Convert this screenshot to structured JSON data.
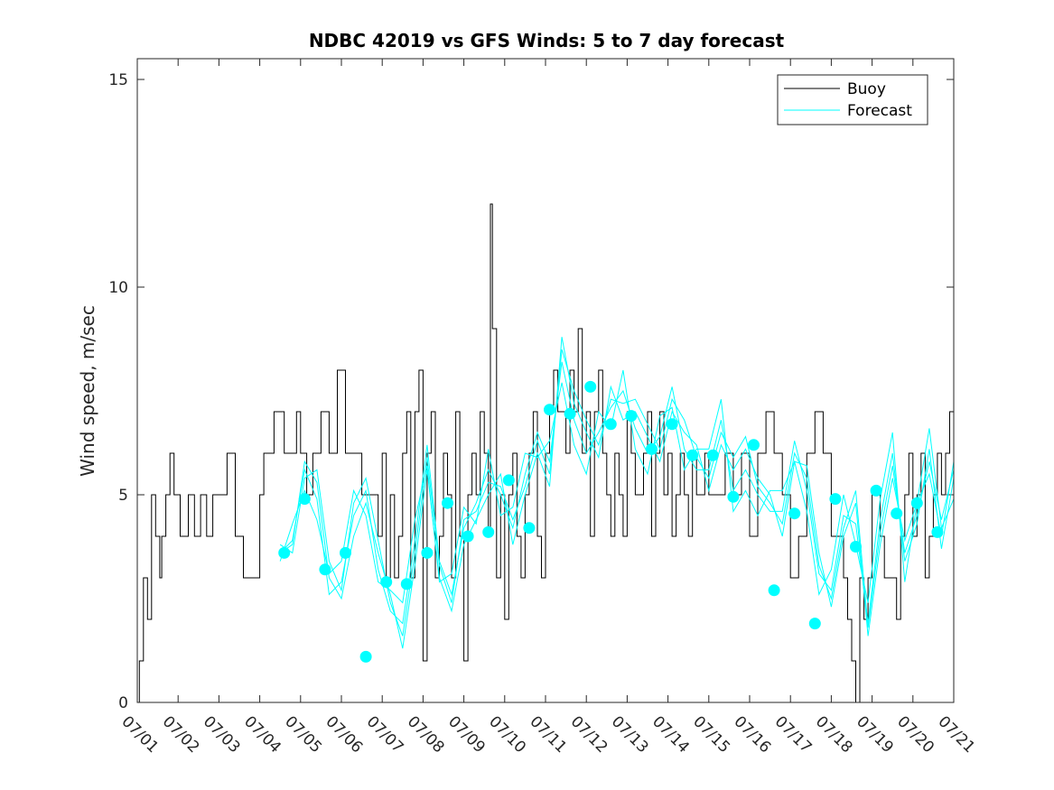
{
  "chart_data": {
    "type": "line",
    "title": "NDBC 42019 vs GFS Winds: 5 to 7 day forecast",
    "xlabel": "",
    "ylabel": "Wind speed, m/sec",
    "x_tick_labels": [
      "07/01",
      "07/02",
      "07/03",
      "07/04",
      "07/05",
      "07/06",
      "07/07",
      "07/08",
      "07/09",
      "07/10",
      "07/11",
      "07/12",
      "07/13",
      "07/14",
      "07/15",
      "07/16",
      "07/17",
      "07/18",
      "07/19",
      "07/20",
      "07/21"
    ],
    "xlim": [
      0,
      20
    ],
    "ylim": [
      0,
      15.5
    ],
    "y_ticks": [
      0,
      5,
      10,
      15
    ],
    "grid": false,
    "legend_position": "top-right",
    "colors": {
      "buoy": "#000000",
      "forecast": "#00ffff"
    },
    "series": [
      {
        "name": "Buoy",
        "style": "step-line",
        "x": [
          0.0,
          0.05,
          0.15,
          0.25,
          0.35,
          0.45,
          0.55,
          0.6,
          0.7,
          0.8,
          0.9,
          1.0,
          1.05,
          1.15,
          1.25,
          1.4,
          1.55,
          1.7,
          1.85,
          2.0,
          2.2,
          2.4,
          2.6,
          2.8,
          3.0,
          3.1,
          3.2,
          3.35,
          3.5,
          3.6,
          3.7,
          3.8,
          3.9,
          4.0,
          4.15,
          4.3,
          4.5,
          4.7,
          4.9,
          5.1,
          5.3,
          5.5,
          5.7,
          5.9,
          6.0,
          6.1,
          6.2,
          6.3,
          6.4,
          6.5,
          6.6,
          6.7,
          6.8,
          6.9,
          7.0,
          7.1,
          7.2,
          7.3,
          7.4,
          7.5,
          7.6,
          7.7,
          7.8,
          7.9,
          8.0,
          8.1,
          8.2,
          8.3,
          8.4,
          8.5,
          8.6,
          8.65,
          8.7,
          8.8,
          8.9,
          9.0,
          9.1,
          9.2,
          9.3,
          9.4,
          9.5,
          9.6,
          9.7,
          9.8,
          9.9,
          10.0,
          10.1,
          10.2,
          10.3,
          10.4,
          10.5,
          10.6,
          10.7,
          10.8,
          10.9,
          11.0,
          11.1,
          11.2,
          11.3,
          11.4,
          11.5,
          11.6,
          11.7,
          11.8,
          11.9,
          12.0,
          12.1,
          12.2,
          12.3,
          12.4,
          12.5,
          12.6,
          12.7,
          12.8,
          12.9,
          13.0,
          13.1,
          13.2,
          13.3,
          13.4,
          13.5,
          13.6,
          13.7,
          13.8,
          13.9,
          14.0,
          14.2,
          14.4,
          14.6,
          14.8,
          15.0,
          15.2,
          15.4,
          15.6,
          15.8,
          16.0,
          16.2,
          16.4,
          16.6,
          16.8,
          17.0,
          17.1,
          17.2,
          17.3,
          17.4,
          17.5,
          17.6,
          17.7,
          17.8,
          17.9,
          18.0,
          18.1,
          18.2,
          18.3,
          18.4,
          18.5,
          18.6,
          18.7,
          18.8,
          18.9,
          19.0,
          19.1,
          19.2,
          19.3,
          19.4,
          19.5,
          19.6,
          19.7,
          19.8,
          19.9,
          20.0
        ],
        "y": [
          0,
          1,
          3,
          2,
          5,
          4,
          3,
          4,
          5,
          6,
          5,
          5,
          4,
          4,
          5,
          4,
          5,
          4,
          5,
          5,
          6,
          4,
          3,
          3,
          5,
          6,
          6,
          7,
          7,
          6,
          6,
          6,
          7,
          6,
          5,
          6,
          7,
          6,
          8,
          6,
          6,
          5,
          5,
          4,
          6,
          3,
          5,
          3,
          4,
          6,
          7,
          3,
          7,
          8,
          1,
          6,
          7,
          3,
          4,
          6,
          5,
          3,
          7,
          4,
          1,
          5,
          6,
          5,
          7,
          6,
          4,
          12,
          9,
          3,
          5,
          2,
          5,
          6,
          4,
          3,
          5,
          6,
          7,
          4,
          3,
          6,
          7,
          8,
          7,
          7,
          6,
          8,
          7,
          9,
          6,
          7,
          4,
          7,
          8,
          6,
          5,
          4,
          6,
          5,
          4,
          7,
          6,
          5,
          5,
          6,
          7,
          4,
          6,
          7,
          5,
          6,
          4,
          5,
          6,
          5,
          4,
          6,
          5,
          5,
          6,
          5,
          5,
          6,
          5,
          6,
          4,
          6,
          7,
          6,
          5,
          3,
          4,
          6,
          7,
          6,
          4,
          4,
          4,
          3,
          2,
          1,
          0,
          3,
          2,
          3,
          5,
          5,
          4,
          3,
          3,
          3,
          2,
          4,
          5,
          6,
          4,
          5,
          6,
          3,
          4,
          5,
          6,
          5,
          6,
          7,
          5
        ]
      },
      {
        "name": "Forecast",
        "style": "multi-line",
        "lines": [
          {
            "x": [
              3.5,
              3.8,
              4.1,
              4.4,
              4.7,
              5.0,
              5.3,
              5.6,
              5.9,
              6.2,
              6.5,
              6.8,
              7.1,
              7.4,
              7.7,
              8.0,
              8.3,
              8.6,
              8.9,
              9.2,
              9.5,
              9.8,
              10.1,
              10.4,
              10.7,
              11.0,
              11.3,
              11.6,
              11.9,
              12.2,
              12.5,
              12.8,
              13.1,
              13.4,
              13.7,
              14.0,
              14.3,
              14.6,
              14.9,
              15.2,
              15.5,
              15.8,
              16.1,
              16.4,
              16.7,
              17.0,
              17.3,
              17.6,
              17.9,
              18.2,
              18.5,
              18.8,
              19.1,
              19.4,
              19.7,
              20.0
            ],
            "y": [
              3.6,
              3.8,
              5.8,
              5.3,
              3.0,
              2.5,
              4.0,
              4.8,
              3.6,
              2.6,
              1.3,
              3.3,
              5.6,
              3.0,
              2.2,
              3.8,
              4.4,
              5.0,
              5.5,
              3.8,
              5.0,
              6.0,
              5.2,
              8.8,
              7.2,
              6.5,
              5.9,
              7.6,
              6.8,
              7.0,
              6.4,
              5.8,
              7.0,
              6.5,
              6.2,
              5.1,
              6.2,
              5.6,
              6.1,
              5.4,
              5.0,
              4.0,
              5.8,
              5.7,
              3.6,
              2.3,
              4.0,
              4.8,
              1.6,
              3.8,
              5.4,
              3.9,
              4.8,
              5.5,
              4.0,
              5.8
            ]
          },
          {
            "x": [
              3.5,
              3.8,
              4.1,
              4.4,
              4.7,
              5.0,
              5.3,
              5.6,
              5.9,
              6.2,
              6.5,
              6.8,
              7.1,
              7.4,
              7.7,
              8.0,
              8.3,
              8.6,
              8.9,
              9.2,
              9.5,
              9.8,
              10.1,
              10.4,
              10.7,
              11.0,
              11.3,
              11.6,
              11.9,
              12.2,
              12.5,
              12.8,
              13.1,
              13.4,
              13.7,
              14.0,
              14.3,
              14.6,
              14.9,
              15.2,
              15.5,
              15.8,
              16.1,
              16.4,
              16.7,
              17.0,
              17.3,
              17.6,
              17.9,
              18.2,
              18.5,
              18.8,
              19.1,
              19.4,
              19.7,
              20.0
            ],
            "y": [
              3.6,
              3.9,
              5.6,
              4.9,
              2.6,
              2.9,
              4.5,
              5.1,
              3.2,
              2.2,
              1.9,
              3.9,
              6.2,
              3.4,
              2.6,
              4.2,
              4.8,
              5.6,
              5.0,
              4.2,
              5.5,
              6.5,
              5.8,
              8.2,
              6.8,
              6.0,
              6.5,
              7.1,
              7.5,
              6.6,
              6.0,
              6.4,
              7.6,
              6.1,
              5.6,
              5.6,
              6.8,
              5.1,
              5.6,
              5.0,
              4.6,
              4.6,
              6.3,
              5.1,
              3.1,
              2.7,
              4.5,
              4.3,
              1.9,
              4.4,
              6.0,
              3.4,
              4.3,
              6.1,
              3.7,
              5.4
            ]
          },
          {
            "x": [
              3.5,
              3.8,
              4.1,
              4.4,
              4.7,
              5.0,
              5.3,
              5.6,
              5.9,
              6.2,
              6.5,
              6.8,
              7.1,
              7.4,
              7.7,
              8.0,
              8.3,
              8.6,
              8.9,
              9.2,
              9.5,
              9.8,
              10.1,
              10.4,
              10.7,
              11.0,
              11.3,
              11.6,
              11.9,
              12.2,
              12.5,
              12.8,
              13.1,
              13.4,
              13.7,
              14.0,
              14.3,
              14.6,
              14.9,
              15.2,
              15.5,
              15.8,
              16.1,
              16.4,
              16.7,
              17.0,
              17.3,
              17.6,
              17.9,
              18.2,
              18.5,
              18.8,
              19.1,
              19.4,
              19.7,
              20.0
            ],
            "y": [
              3.4,
              4.3,
              5.1,
              4.4,
              3.1,
              3.4,
              5.1,
              4.5,
              2.9,
              2.7,
              2.4,
              4.4,
              5.7,
              2.9,
              3.1,
              4.7,
              4.3,
              6.1,
              4.5,
              4.7,
              6.0,
              5.9,
              6.3,
              7.7,
              6.2,
              5.5,
              7.0,
              6.6,
              8.0,
              6.1,
              5.5,
              6.9,
              7.1,
              5.6,
              6.1,
              6.1,
              7.3,
              4.6,
              5.1,
              4.5,
              5.1,
              5.1,
              5.8,
              4.6,
              2.6,
              3.2,
              5.0,
              3.8,
              2.4,
              4.9,
              6.5,
              2.9,
              4.8,
              6.6,
              4.2,
              4.9
            ]
          },
          {
            "x": [
              3.5,
              3.8,
              4.1,
              4.4,
              4.7,
              5.0,
              5.3,
              5.6,
              5.9,
              6.2,
              6.5,
              6.8,
              7.1,
              7.4,
              7.7,
              8.0,
              8.3,
              8.6,
              8.9,
              9.2,
              9.5,
              9.8,
              10.1,
              10.4,
              10.7,
              11.0,
              11.3,
              11.6,
              11.9,
              12.2,
              12.5,
              12.8,
              13.1,
              13.4,
              13.7,
              14.0,
              14.3,
              14.6,
              14.9,
              15.2,
              15.5,
              15.8,
              16.1,
              16.4,
              16.7,
              17.0,
              17.3,
              17.6,
              17.9,
              18.2,
              18.5,
              18.8,
              19.1,
              19.4,
              19.7,
              20.0
            ],
            "y": [
              3.8,
              3.6,
              5.4,
              5.6,
              3.4,
              2.7,
              4.8,
              5.4,
              3.9,
              2.4,
              1.6,
              3.6,
              5.9,
              3.3,
              2.4,
              4.4,
              4.6,
              5.3,
              5.2,
              4.4,
              5.2,
              6.3,
              5.5,
              8.5,
              7.5,
              6.8,
              6.2,
              7.3,
              7.2,
              7.3,
              6.7,
              6.1,
              7.3,
              6.8,
              5.9,
              5.4,
              6.5,
              5.9,
              6.4,
              5.2,
              4.8,
              4.3,
              6.0,
              5.4,
              3.3,
              2.5,
              4.2,
              5.1,
              1.8,
              4.1,
              5.7,
              3.6,
              4.5,
              5.8,
              4.4,
              5.6
            ]
          }
        ],
        "markers": [
          {
            "x": 3.6,
            "y": 3.6
          },
          {
            "x": 4.1,
            "y": 4.9
          },
          {
            "x": 4.6,
            "y": 3.2
          },
          {
            "x": 5.1,
            "y": 3.6
          },
          {
            "x": 5.6,
            "y": 1.1
          },
          {
            "x": 6.1,
            "y": 2.9
          },
          {
            "x": 6.6,
            "y": 2.85
          },
          {
            "x": 7.1,
            "y": 3.6
          },
          {
            "x": 7.6,
            "y": 4.8
          },
          {
            "x": 8.1,
            "y": 4.0
          },
          {
            "x": 8.6,
            "y": 4.1
          },
          {
            "x": 9.1,
            "y": 5.35
          },
          {
            "x": 9.6,
            "y": 4.2
          },
          {
            "x": 10.1,
            "y": 7.05
          },
          {
            "x": 10.6,
            "y": 6.95
          },
          {
            "x": 11.1,
            "y": 7.6
          },
          {
            "x": 11.6,
            "y": 6.7
          },
          {
            "x": 12.1,
            "y": 6.9
          },
          {
            "x": 12.6,
            "y": 6.1
          },
          {
            "x": 13.1,
            "y": 6.7
          },
          {
            "x": 13.6,
            "y": 5.95
          },
          {
            "x": 14.1,
            "y": 5.95
          },
          {
            "x": 14.6,
            "y": 4.95
          },
          {
            "x": 15.1,
            "y": 6.2
          },
          {
            "x": 15.6,
            "y": 2.7
          },
          {
            "x": 16.1,
            "y": 4.55
          },
          {
            "x": 16.6,
            "y": 1.9
          },
          {
            "x": 17.1,
            "y": 4.9
          },
          {
            "x": 17.6,
            "y": 3.75
          },
          {
            "x": 18.1,
            "y": 5.1
          },
          {
            "x": 18.6,
            "y": 4.55
          },
          {
            "x": 19.1,
            "y": 4.8
          },
          {
            "x": 19.6,
            "y": 4.1
          }
        ]
      }
    ],
    "legend": [
      {
        "label": "Buoy",
        "color": "#000000"
      },
      {
        "label": "Forecast",
        "color": "#00ffff"
      }
    ]
  }
}
